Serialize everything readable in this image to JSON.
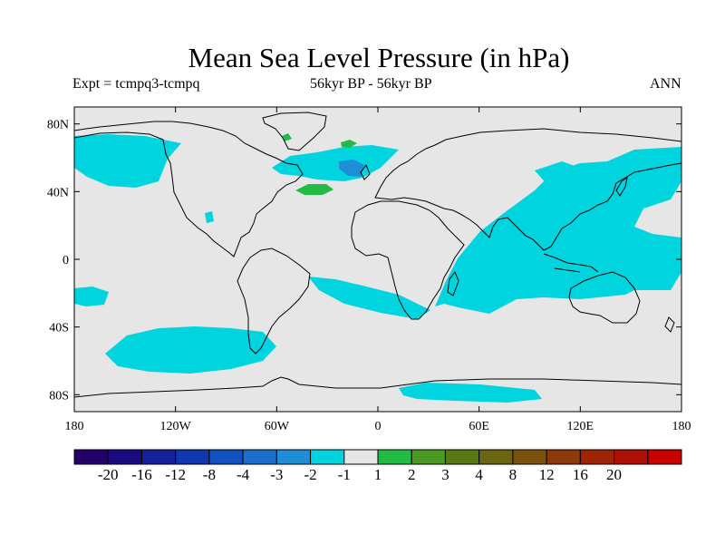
{
  "header": {
    "title": "Mean Sea Level Pressure (in hPa)",
    "expt": "Expt = tcmpq3-tcmpq",
    "period": "56kyr BP - 56kyr BP",
    "season": "ANN"
  },
  "map": {
    "projection": "cylindrical-equidistant",
    "lon_range": [
      -180,
      180
    ],
    "lat_range": [
      -90,
      90
    ],
    "background_color": "#e6e6e6",
    "coastline_color": "#000000",
    "lat_ticks": [
      {
        "value": 80,
        "label": "80N"
      },
      {
        "value": 40,
        "label": "40N"
      },
      {
        "value": 0,
        "label": "0"
      },
      {
        "value": -40,
        "label": "40S"
      },
      {
        "value": -80,
        "label": "80S"
      }
    ],
    "lon_ticks": [
      {
        "value": -180,
        "label": "180"
      },
      {
        "value": -120,
        "label": "120W"
      },
      {
        "value": -60,
        "label": "60W"
      },
      {
        "value": 0,
        "label": "0"
      },
      {
        "value": 60,
        "label": "60E"
      },
      {
        "value": 120,
        "label": "120E"
      },
      {
        "value": 180,
        "label": "180"
      }
    ]
  },
  "colorbar": {
    "colors": [
      "#24006b",
      "#1a0a80",
      "#13229a",
      "#0f38b0",
      "#1152c0",
      "#1a6fcc",
      "#1e8ed6",
      "#00d4df",
      "#e6e6e6",
      "#22bb44",
      "#4c9a22",
      "#577a14",
      "#6b6410",
      "#7a520c",
      "#8c3a08",
      "#a02404",
      "#b01004",
      "#c80000"
    ],
    "labels": [
      "-20",
      "-16",
      "-12",
      "-8",
      "-4",
      "-3",
      "-2",
      "-1",
      "1",
      "2",
      "3",
      "4",
      "8",
      "12",
      "16",
      "20"
    ]
  }
}
